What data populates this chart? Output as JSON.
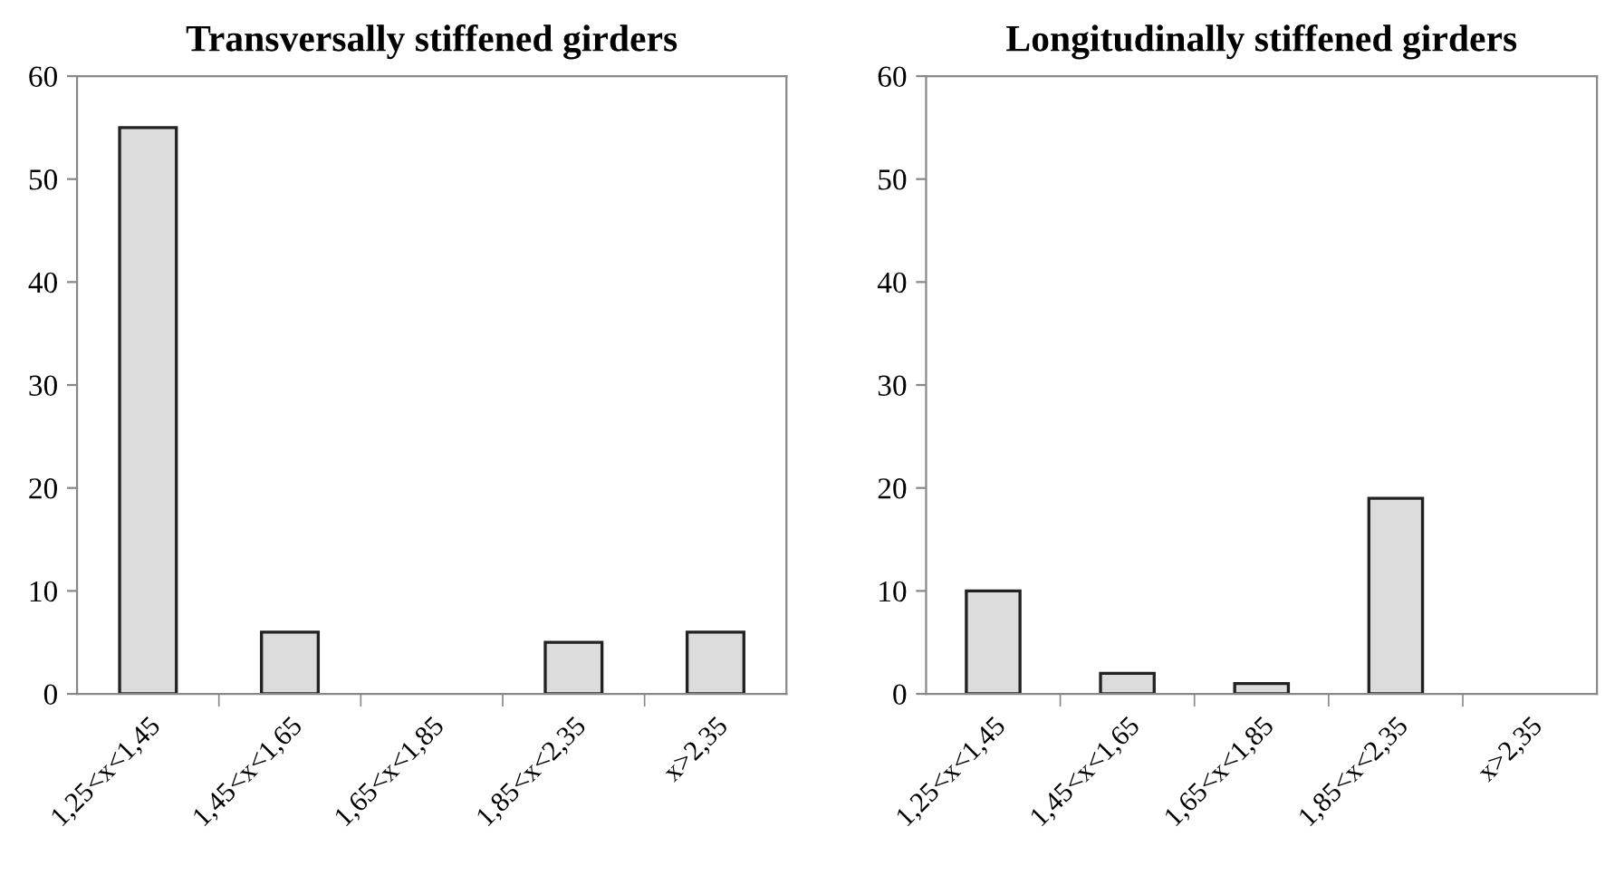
{
  "chart_data": [
    {
      "type": "bar",
      "title": "Transversally stiffened girders",
      "categories": [
        "1,25<x<1,45",
        "1,45<x<1,65",
        "1,65<x<1,85",
        "1,85<x<2,35",
        "x>2,35"
      ],
      "values": [
        55,
        6,
        0,
        5,
        6
      ],
      "color": "#dcdcdc",
      "ylim": [
        0,
        60
      ],
      "yticks": [
        0,
        10,
        20,
        30,
        40,
        50,
        60
      ],
      "grid": false,
      "legend": false
    },
    {
      "type": "bar",
      "title": "Longitudinally stiffened girders",
      "categories": [
        "1,25<x<1,45",
        "1,45<x<1,65",
        "1,65<x<1,85",
        "1,85<x<2,35",
        "x>2,35"
      ],
      "values": [
        10,
        2,
        1,
        19,
        0
      ],
      "color": "#dcdcdc",
      "ylim": [
        0,
        60
      ],
      "yticks": [
        0,
        10,
        20,
        30,
        40,
        50,
        60
      ],
      "grid": false,
      "legend": false
    }
  ]
}
